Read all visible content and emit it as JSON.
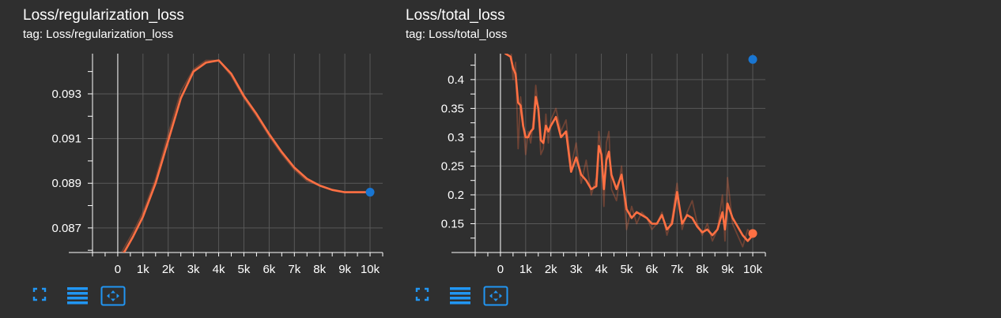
{
  "colors": {
    "background": "#2f2f2f",
    "grid": "#585858",
    "axis": "#ffffff",
    "zero_line": "#bdbdbd",
    "smoothed": "#ff7043",
    "raw": "#ff7043",
    "point_blue": "#1976d2",
    "point_orange": "#ff7043",
    "toolbar_icon": "#2196f3"
  },
  "icons": [
    "fullscreen-icon",
    "data-table-icon",
    "fit-domain-icon"
  ],
  "cards": [
    {
      "title": "Loss/regularization_loss",
      "tag": "tag: Loss/regularization_loss"
    },
    {
      "title": "Loss/total_loss",
      "tag": "tag: Loss/total_loss"
    }
  ],
  "chart_data": [
    {
      "type": "line",
      "title": "Loss/regularization_loss",
      "xlabel": "",
      "ylabel": "",
      "xlim": [
        -1000,
        10500
      ],
      "ylim": [
        0.0859,
        0.0948
      ],
      "x_ticks": [
        0,
        1000,
        2000,
        3000,
        4000,
        5000,
        6000,
        7000,
        8000,
        9000,
        10000
      ],
      "x_tick_labels": [
        "0",
        "1k",
        "2k",
        "3k",
        "4k",
        "5k",
        "6k",
        "7k",
        "8k",
        "9k",
        "10k"
      ],
      "y_ticks": [
        0.087,
        0.089,
        0.091,
        0.093
      ],
      "y_tick_labels": [
        "0.087",
        "0.089",
        "0.091",
        "0.093"
      ],
      "grid": true,
      "series": [
        {
          "role": "raw",
          "x": [
            0,
            300,
            600,
            1000,
            1500,
            2000,
            2500,
            3000,
            3500,
            4000,
            4500,
            5000,
            5500,
            6000,
            6500,
            7000,
            7500,
            8000,
            8500,
            9000,
            9500,
            10000
          ],
          "y": [
            0.0856,
            0.0862,
            0.0868,
            0.0877,
            0.0892,
            0.0912,
            0.0931,
            0.0941,
            0.0945,
            0.0945,
            0.0938,
            0.0928,
            0.092,
            0.0911,
            0.0903,
            0.0896,
            0.0891,
            0.0889,
            0.0887,
            0.0886,
            0.0886,
            0.0886
          ]
        },
        {
          "role": "smoothed",
          "x": [
            0,
            300,
            600,
            1000,
            1500,
            2000,
            2500,
            3000,
            3500,
            4000,
            4500,
            5000,
            5500,
            6000,
            6500,
            7000,
            7500,
            8000,
            8500,
            9000,
            9500,
            10000
          ],
          "y": [
            0.0855,
            0.086,
            0.0866,
            0.0875,
            0.089,
            0.0909,
            0.0928,
            0.094,
            0.0944,
            0.0945,
            0.0939,
            0.0929,
            0.0921,
            0.0912,
            0.0904,
            0.0897,
            0.0892,
            0.0889,
            0.0887,
            0.0886,
            0.0886,
            0.0886
          ]
        }
      ],
      "points": [
        {
          "x": 10000,
          "y": 0.0886,
          "color": "#1976d2"
        }
      ]
    },
    {
      "type": "line",
      "title": "Loss/total_loss",
      "xlabel": "",
      "ylabel": "",
      "xlim": [
        -1000,
        10500
      ],
      "ylim": [
        0.1,
        0.445
      ],
      "x_ticks": [
        0,
        1000,
        2000,
        3000,
        4000,
        5000,
        6000,
        7000,
        8000,
        9000,
        10000
      ],
      "x_tick_labels": [
        "0",
        "1k",
        "2k",
        "3k",
        "4k",
        "5k",
        "6k",
        "7k",
        "8k",
        "9k",
        "10k"
      ],
      "y_ticks": [
        0.15,
        0.2,
        0.25,
        0.3,
        0.35,
        0.4
      ],
      "y_tick_labels": [
        "0.15",
        "0.2",
        "0.25",
        "0.3",
        "0.35",
        "0.4"
      ],
      "grid": true,
      "series": [
        {
          "role": "raw",
          "x": [
            200,
            400,
            500,
            600,
            700,
            800,
            900,
            1000,
            1100,
            1200,
            1300,
            1400,
            1500,
            1600,
            1700,
            1800,
            1900,
            2000,
            2200,
            2400,
            2600,
            2800,
            3000,
            3200,
            3400,
            3600,
            3800,
            3900,
            4000,
            4100,
            4200,
            4300,
            4400,
            4600,
            4800,
            5000,
            5200,
            5400,
            5600,
            5800,
            6000,
            6200,
            6400,
            6600,
            6800,
            7000,
            7200,
            7400,
            7600,
            7800,
            8000,
            8200,
            8400,
            8600,
            8800,
            8900,
            9000,
            9200,
            9400,
            9600,
            9800,
            10000
          ],
          "y": [
            0.445,
            0.46,
            0.4,
            0.43,
            0.28,
            0.37,
            0.33,
            0.27,
            0.31,
            0.29,
            0.33,
            0.39,
            0.35,
            0.27,
            0.28,
            0.34,
            0.29,
            0.33,
            0.35,
            0.31,
            0.33,
            0.25,
            0.29,
            0.22,
            0.26,
            0.2,
            0.23,
            0.31,
            0.27,
            0.18,
            0.29,
            0.31,
            0.21,
            0.19,
            0.25,
            0.14,
            0.18,
            0.15,
            0.17,
            0.16,
            0.14,
            0.15,
            0.17,
            0.13,
            0.16,
            0.22,
            0.14,
            0.17,
            0.19,
            0.15,
            0.13,
            0.15,
            0.12,
            0.14,
            0.2,
            0.12,
            0.23,
            0.15,
            0.13,
            0.11,
            0.14,
            0.13
          ]
        },
        {
          "role": "smoothed",
          "x": [
            200,
            400,
            500,
            600,
            700,
            800,
            900,
            1000,
            1100,
            1200,
            1300,
            1400,
            1500,
            1600,
            1700,
            1800,
            1900,
            2000,
            2200,
            2400,
            2600,
            2800,
            3000,
            3200,
            3400,
            3600,
            3800,
            3900,
            4000,
            4100,
            4200,
            4300,
            4400,
            4600,
            4800,
            5000,
            5200,
            5400,
            5600,
            5800,
            6000,
            6200,
            6400,
            6600,
            6800,
            7000,
            7200,
            7400,
            7600,
            7800,
            8000,
            8200,
            8400,
            8600,
            8800,
            8900,
            9000,
            9200,
            9400,
            9600,
            9800,
            10000
          ],
          "y": [
            0.445,
            0.44,
            0.42,
            0.41,
            0.36,
            0.355,
            0.32,
            0.3,
            0.3,
            0.31,
            0.315,
            0.37,
            0.35,
            0.295,
            0.29,
            0.32,
            0.31,
            0.32,
            0.335,
            0.3,
            0.31,
            0.24,
            0.265,
            0.235,
            0.225,
            0.21,
            0.215,
            0.285,
            0.27,
            0.21,
            0.26,
            0.275,
            0.235,
            0.21,
            0.235,
            0.175,
            0.16,
            0.17,
            0.165,
            0.16,
            0.15,
            0.15,
            0.165,
            0.14,
            0.15,
            0.205,
            0.15,
            0.165,
            0.16,
            0.145,
            0.135,
            0.14,
            0.13,
            0.14,
            0.17,
            0.14,
            0.185,
            0.16,
            0.145,
            0.13,
            0.12,
            0.13
          ]
        }
      ],
      "points": [
        {
          "x": 10000,
          "y": 0.435,
          "color": "#1976d2"
        },
        {
          "x": 10000,
          "y": 0.133,
          "color": "#ff7043"
        }
      ]
    }
  ]
}
